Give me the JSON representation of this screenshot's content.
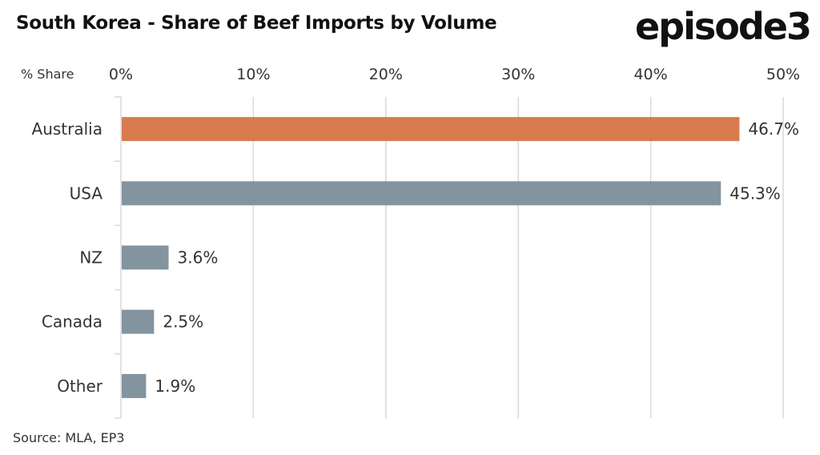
{
  "chart_data": {
    "type": "bar",
    "orientation": "horizontal",
    "title": "South Korea - Share of Beef Imports by Volume",
    "xlabel": "% Share",
    "ylabel": "",
    "categories": [
      "Australia",
      "USA",
      "NZ",
      "Canada",
      "Other"
    ],
    "values": [
      46.7,
      45.3,
      3.6,
      2.5,
      1.9
    ],
    "data_labels": [
      "46.7%",
      "45.3%",
      "3.6%",
      "2.5%",
      "1.9%"
    ],
    "xlim": [
      0,
      50
    ],
    "x_ticks": [
      0,
      10,
      20,
      30,
      40,
      50
    ],
    "x_tick_labels": [
      "0%",
      "10%",
      "20%",
      "30%",
      "40%",
      "50%"
    ],
    "x_axis_position": "top",
    "grid": "vertical",
    "colors": [
      "#D97B4E",
      "#83949F",
      "#83949F",
      "#83949F",
      "#83949F"
    ],
    "gridline_color": "#D9D9D9",
    "source": "Source: MLA, EP3"
  },
  "logo": "episode3"
}
